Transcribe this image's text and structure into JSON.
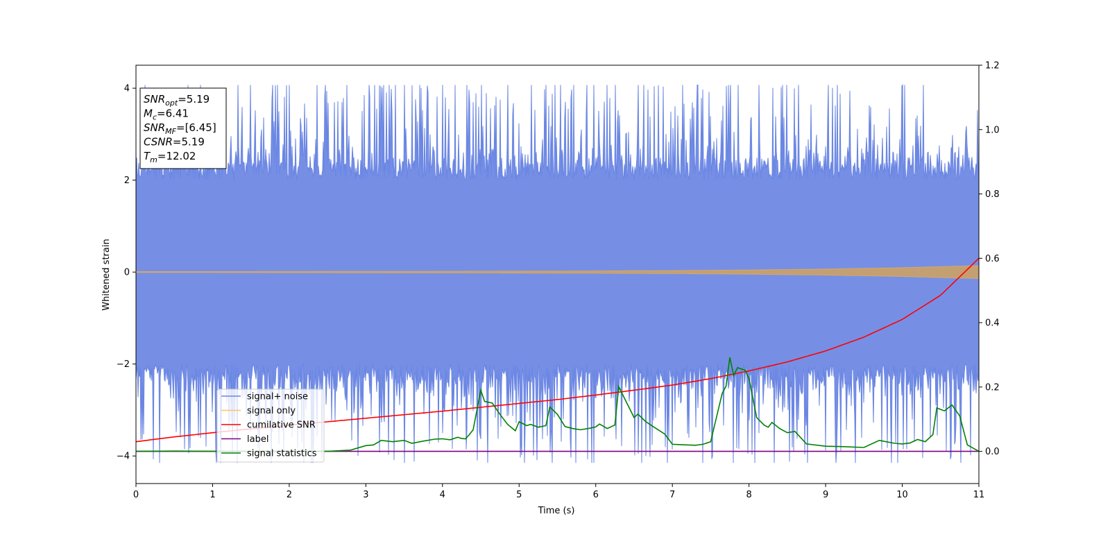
{
  "chart_data": {
    "type": "line",
    "xlabel": "Time (s)",
    "ylabel": "Whitened strain",
    "xlim": [
      0,
      11
    ],
    "ylim": [
      -4.6,
      4.5
    ],
    "y2lim": [
      -0.1,
      1.2
    ],
    "xticks": [
      0,
      1,
      2,
      3,
      4,
      5,
      6,
      7,
      8,
      9,
      10,
      11
    ],
    "xtick_labels": [
      "0",
      "1",
      "2",
      "3",
      "4",
      "5",
      "6",
      "7",
      "8",
      "9",
      "10",
      "11"
    ],
    "yticks": [
      -4,
      -2,
      0,
      2,
      4
    ],
    "ytick_labels": [
      "−4",
      "−2",
      "0",
      "2",
      "4"
    ],
    "y2ticks": [
      0.0,
      0.2,
      0.4,
      0.6,
      0.8,
      1.0,
      1.2
    ],
    "y2tick_labels": [
      "0.0",
      "0.2",
      "0.4",
      "0.6",
      "0.8",
      "1.0",
      "1.2"
    ],
    "legend_position": "lower-left",
    "colors": {
      "noise": "#6A86E3",
      "signal": "#F9C46B",
      "csnr": "#FF0000",
      "label": "#800080",
      "stats": "#008000"
    },
    "series": [
      {
        "name": "signal+ noise",
        "axis": "left",
        "band": {
          "x": [
            0,
            11
          ],
          "low_mean": -2.0,
          "high_mean": 2.0,
          "peak_max": 4.07,
          "peak_min": -4.15
        }
      },
      {
        "name": "signal only",
        "axis": "left",
        "envelope": {
          "x": [
            0,
            1,
            2,
            3,
            4,
            5,
            6,
            7,
            8,
            9,
            10,
            11
          ],
          "amplitude": [
            0.01,
            0.01,
            0.012,
            0.014,
            0.016,
            0.02,
            0.025,
            0.032,
            0.045,
            0.065,
            0.095,
            0.14
          ]
        }
      },
      {
        "name": "cumilative SNR",
        "axis": "right",
        "x": [
          0,
          0.5,
          1,
          1.5,
          2,
          2.5,
          3,
          3.5,
          4,
          4.5,
          5,
          5.5,
          6,
          6.5,
          7,
          7.5,
          8,
          8.5,
          9,
          9.5,
          10,
          10.5,
          11
        ],
        "y": [
          0.03,
          0.045,
          0.058,
          0.07,
          0.081,
          0.092,
          0.103,
          0.114,
          0.125,
          0.137,
          0.149,
          0.161,
          0.175,
          0.19,
          0.206,
          0.226,
          0.25,
          0.278,
          0.312,
          0.355,
          0.41,
          0.485,
          0.6
        ]
      },
      {
        "name": "label",
        "axis": "right",
        "x": [
          0,
          11
        ],
        "y": [
          0.0,
          0.0
        ]
      },
      {
        "name": "signal statistics",
        "axis": "right",
        "x": [
          0,
          0.5,
          1,
          1.5,
          2,
          2.5,
          2.8,
          3,
          3.1,
          3.2,
          3.35,
          3.5,
          3.6,
          3.75,
          3.9,
          4.0,
          4.1,
          4.2,
          4.25,
          4.3,
          4.35,
          4.4,
          4.5,
          4.55,
          4.65,
          4.75,
          4.85,
          4.95,
          5.0,
          5.1,
          5.15,
          5.25,
          5.35,
          5.4,
          5.5,
          5.6,
          5.7,
          5.8,
          5.9,
          6.0,
          6.05,
          6.15,
          6.25,
          6.3,
          6.4,
          6.5,
          6.55,
          6.65,
          6.75,
          6.9,
          7.0,
          7.1,
          7.3,
          7.4,
          7.5,
          7.55,
          7.65,
          7.7,
          7.75,
          7.8,
          7.85,
          7.95,
          8.0,
          8.1,
          8.2,
          8.25,
          8.3,
          8.4,
          8.5,
          8.6,
          8.75,
          9.0,
          9.2,
          9.5,
          9.7,
          9.9,
          10.0,
          10.1,
          10.2,
          10.3,
          10.4,
          10.45,
          10.55,
          10.65,
          10.75,
          10.85,
          11.0
        ],
        "y": [
          0.0,
          0.001,
          0.0,
          0.0,
          0.001,
          0.0,
          0.004,
          0.018,
          0.02,
          0.034,
          0.03,
          0.034,
          0.025,
          0.032,
          0.038,
          0.039,
          0.036,
          0.044,
          0.04,
          0.039,
          0.052,
          0.067,
          0.19,
          0.155,
          0.15,
          0.115,
          0.084,
          0.064,
          0.092,
          0.08,
          0.084,
          0.075,
          0.08,
          0.138,
          0.115,
          0.077,
          0.071,
          0.067,
          0.071,
          0.076,
          0.085,
          0.071,
          0.082,
          0.201,
          0.153,
          0.105,
          0.116,
          0.093,
          0.077,
          0.054,
          0.022,
          0.021,
          0.019,
          0.022,
          0.03,
          0.08,
          0.18,
          0.202,
          0.292,
          0.236,
          0.26,
          0.252,
          0.226,
          0.105,
          0.081,
          0.075,
          0.09,
          0.071,
          0.058,
          0.062,
          0.023,
          0.016,
          0.015,
          0.012,
          0.034,
          0.025,
          0.023,
          0.026,
          0.037,
          0.03,
          0.052,
          0.135,
          0.126,
          0.144,
          0.11,
          0.02,
          0.0
        ]
      }
    ],
    "annotations": [
      {
        "name": "SNR",
        "sub": "opt",
        "value": "=5.19"
      },
      {
        "name": "M",
        "sub": "c",
        "value": "=6.41"
      },
      {
        "name": "SNR",
        "sub": "MF",
        "value": "=[6.45]"
      },
      {
        "name": "CSNR",
        "sub": "",
        "value": "=5.19"
      },
      {
        "name": "T",
        "sub": "m",
        "value": "=12.02"
      }
    ]
  }
}
